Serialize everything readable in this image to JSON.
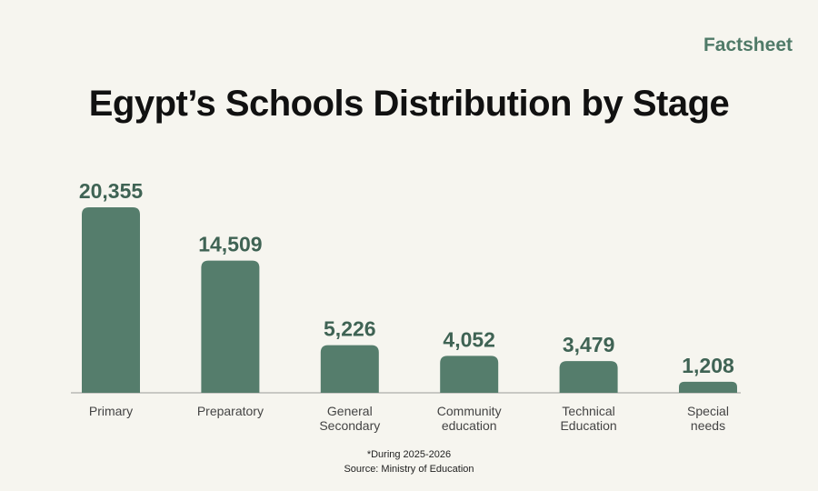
{
  "brand": "Factsheet",
  "chart_data": {
    "type": "bar",
    "title": "Egypt’s Schools Distribution by Stage",
    "categories": [
      "Primary",
      "Preparatory",
      "General Secondary",
      "Community education",
      "Technical Education",
      "Special needs"
    ],
    "values": [
      20355,
      14509,
      5226,
      4052,
      3479,
      1208
    ],
    "value_labels": [
      "20,355",
      "14,509",
      "5,226",
      "4,052",
      "3,479",
      "1,208"
    ],
    "color": "#557d6c"
  },
  "footnote": "*During 2025-2026",
  "source": "Source: Ministry of Education"
}
